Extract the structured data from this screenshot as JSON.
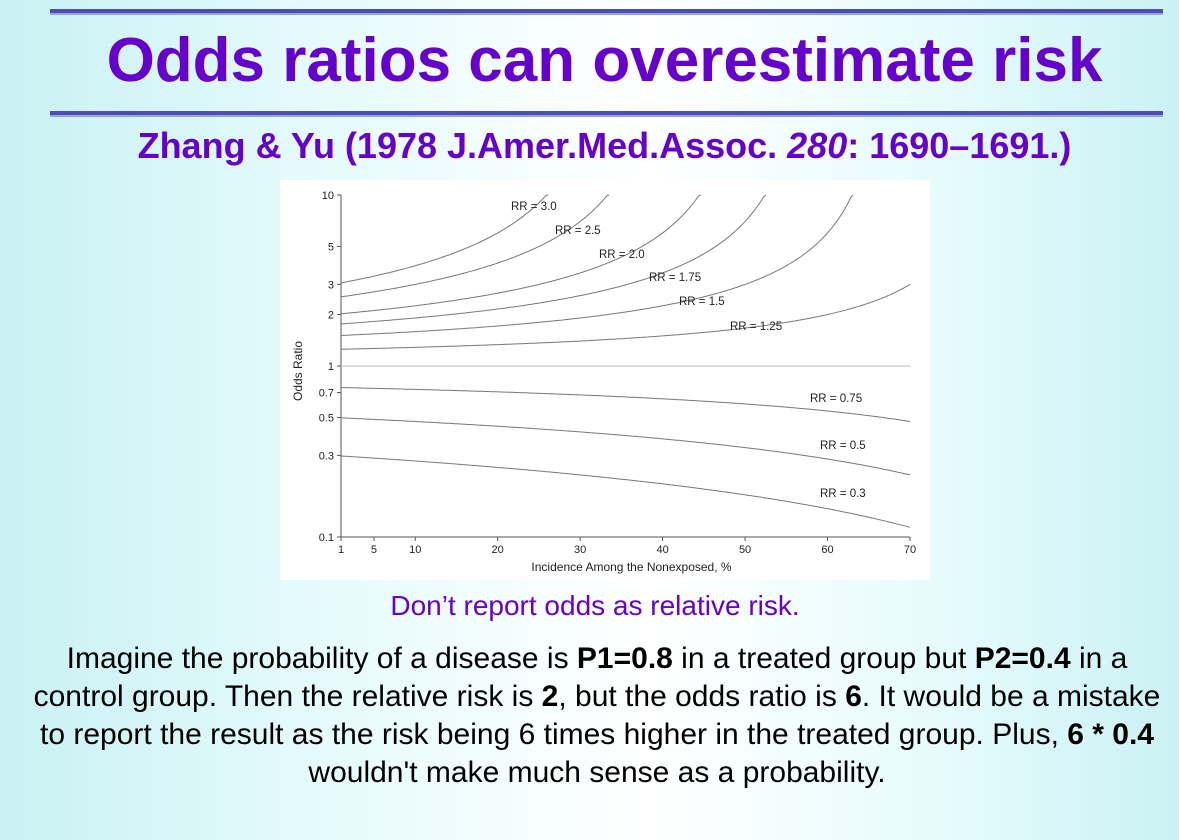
{
  "title": "Odds ratios can overestimate risk",
  "citation": {
    "before": "Zhang & Yu (1978 J.Amer.Med.Assoc. ",
    "volume": "280",
    "after": ": 1690–1691.)"
  },
  "caption": "Don’t report odds as relative risk.",
  "body": {
    "s1": "Imagine the probability of a disease is ",
    "b1": "P1=0.8",
    "s2": " in a treated group but ",
    "b2": "P2=0.4",
    "s3": " in a control group. Then the relative risk is ",
    "b3": "2",
    "s4": ", but the odds ratio is ",
    "b4": "6",
    "s5": ". It would be a mistake to report the result as the risk being 6 times higher in the treated group. Plus, ",
    "b5": "6 * 0.4",
    "s6": " wouldn't make much sense as a probability."
  },
  "colors": {
    "title": "#6600cc",
    "rule": "#4a4fb0",
    "curve": "#777777"
  },
  "chart_data": {
    "type": "line",
    "xlabel": "Incidence Among the Nonexposed, %",
    "ylabel": "Odds Ratio",
    "xlim": [
      1,
      70
    ],
    "ylim": [
      0.1,
      10
    ],
    "y_scale": "log",
    "grid": false,
    "x_ticks": [
      1,
      5,
      10,
      20,
      30,
      40,
      50,
      60,
      70
    ],
    "y_ticks": [
      0.1,
      0.3,
      0.5,
      0.7,
      1,
      2,
      3,
      5,
      10
    ],
    "y_tick_labels": [
      "0.1",
      "0.3",
      "0.5",
      "0.7",
      "1",
      "2",
      "3",
      "5",
      "10"
    ],
    "reference_line": 1,
    "series": [
      {
        "name": "RR = 3.0",
        "rr": 3.0,
        "x": [
          1,
          5,
          10,
          15,
          20,
          25,
          30
        ],
        "y": [
          3.06,
          3.38,
          3.86,
          4.56,
          5.62,
          7.5,
          12.0
        ]
      },
      {
        "name": "RR = 2.5",
        "rr": 2.5,
        "x": [
          1,
          5,
          10,
          15,
          20,
          25,
          30,
          35
        ],
        "y": [
          2.54,
          2.74,
          3.0,
          3.35,
          3.83,
          4.5,
          5.5,
          7.22
        ]
      },
      {
        "name": "RR = 2.0",
        "rr": 2.0,
        "x": [
          1,
          10,
          20,
          30,
          40,
          45
        ],
        "y": [
          2.02,
          2.25,
          2.67,
          3.5,
          6.0,
          9.0
        ]
      },
      {
        "name": "RR = 1.75",
        "rr": 1.75,
        "x": [
          1,
          10,
          20,
          30,
          40,
          50
        ],
        "y": [
          1.76,
          1.91,
          2.15,
          2.55,
          3.43,
          7.0
        ]
      },
      {
        "name": "RR = 1.5",
        "rr": 1.5,
        "x": [
          1,
          10,
          20,
          30,
          40,
          50,
          60
        ],
        "y": [
          1.51,
          1.59,
          1.71,
          1.93,
          2.25,
          3.0,
          6.0
        ]
      },
      {
        "name": "RR = 1.25",
        "rr": 1.25,
        "x": [
          1,
          10,
          20,
          30,
          40,
          50,
          60,
          70
        ],
        "y": [
          1.25,
          1.29,
          1.33,
          1.4,
          1.5,
          1.67,
          2.0,
          2.92
        ]
      },
      {
        "name": "RR = 0.75",
        "rr": 0.75,
        "x": [
          1,
          10,
          20,
          30,
          40,
          50,
          60,
          70
        ],
        "y": [
          0.75,
          0.73,
          0.71,
          0.68,
          0.64,
          0.6,
          0.55,
          0.5
        ]
      },
      {
        "name": "RR = 0.5",
        "rr": 0.5,
        "x": [
          1,
          10,
          20,
          30,
          40,
          50,
          60,
          70
        ],
        "y": [
          0.5,
          0.47,
          0.44,
          0.41,
          0.38,
          0.33,
          0.29,
          0.25
        ]
      },
      {
        "name": "RR = 0.3",
        "rr": 0.3,
        "x": [
          1,
          10,
          20,
          30,
          40,
          50,
          60,
          70
        ],
        "y": [
          0.3,
          0.28,
          0.26,
          0.23,
          0.2,
          0.18,
          0.15,
          0.13
        ]
      }
    ]
  }
}
